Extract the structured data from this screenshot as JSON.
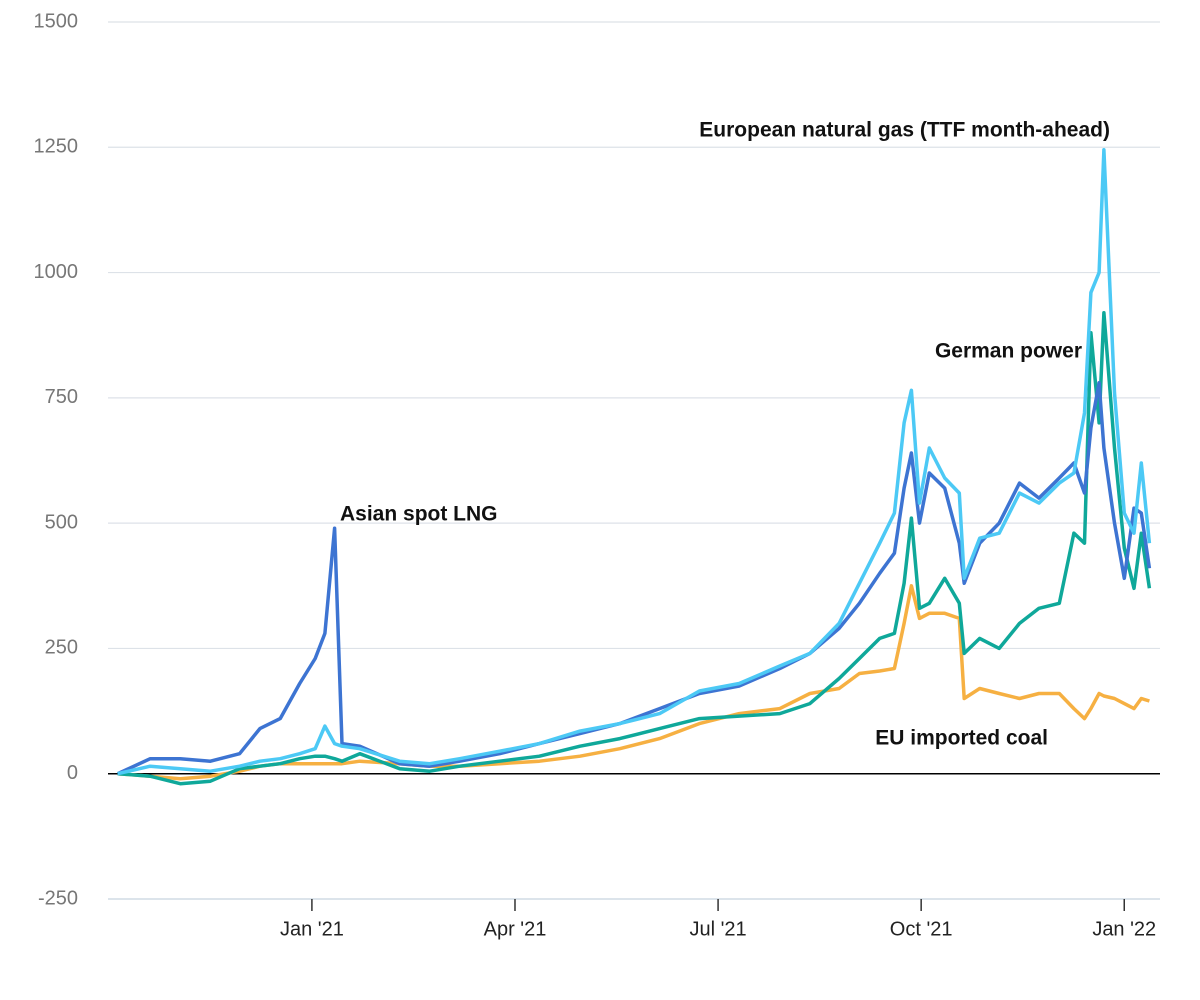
{
  "chart_data": {
    "type": "line",
    "annotations": [
      "Asian spot LNG",
      "European natural gas (TTF month-ahead)",
      "German power",
      "EU imported coal"
    ],
    "x": [
      2020.761,
      2020.801,
      2020.838,
      2020.875,
      2020.911,
      2020.936,
      2020.961,
      2020.985,
      2021.004,
      2021.016,
      2021.028,
      2021.037,
      2021.059,
      2021.108,
      2021.145,
      2021.182,
      2021.231,
      2021.28,
      2021.33,
      2021.379,
      2021.428,
      2021.477,
      2021.526,
      2021.576,
      2021.613,
      2021.649,
      2021.674,
      2021.699,
      2021.717,
      2021.729,
      2021.738,
      2021.748,
      2021.76,
      2021.779,
      2021.797,
      2021.803,
      2021.822,
      2021.846,
      2021.871,
      2021.895,
      2021.92,
      2021.938,
      2021.951,
      2021.959,
      2021.969,
      2021.975,
      2021.988,
      2022.0,
      2022.012,
      2022.021,
      2022.031
    ],
    "series": [
      {
        "name": "EU imported coal",
        "color": "#f6b042",
        "values": [
          0,
          -5,
          -10,
          -5,
          5,
          15,
          20,
          20,
          20,
          20,
          20,
          20,
          25,
          20,
          15,
          15,
          20,
          25,
          35,
          50,
          70,
          100,
          120,
          130,
          160,
          170,
          200,
          205,
          210,
          300,
          375,
          310,
          320,
          320,
          310,
          150,
          170,
          160,
          150,
          160,
          160,
          130,
          110,
          130,
          160,
          155,
          150,
          140,
          130,
          150,
          145
        ]
      },
      {
        "name": "German power",
        "color": "#0fa89a",
        "values": [
          0,
          -5,
          -20,
          -15,
          10,
          15,
          20,
          30,
          35,
          35,
          30,
          25,
          40,
          10,
          5,
          15,
          25,
          35,
          55,
          70,
          90,
          110,
          115,
          120,
          140,
          190,
          230,
          270,
          280,
          380,
          510,
          330,
          340,
          390,
          340,
          240,
          270,
          250,
          300,
          330,
          340,
          480,
          460,
          880,
          700,
          920,
          650,
          450,
          370,
          480,
          370
        ]
      },
      {
        "name": "Asian spot LNG",
        "color": "#3d74d2",
        "values": [
          0,
          30,
          30,
          25,
          40,
          90,
          110,
          180,
          230,
          280,
          490,
          60,
          55,
          20,
          15,
          25,
          40,
          60,
          80,
          100,
          130,
          160,
          175,
          210,
          240,
          290,
          340,
          400,
          440,
          570,
          640,
          500,
          600,
          570,
          460,
          380,
          460,
          500,
          580,
          550,
          590,
          620,
          560,
          690,
          780,
          650,
          500,
          390,
          530,
          520,
          410
        ]
      },
      {
        "name": "European natural gas (TTF month-ahead)",
        "color": "#4cc9f5",
        "values": [
          0,
          15,
          10,
          5,
          15,
          25,
          30,
          40,
          50,
          95,
          60,
          55,
          50,
          25,
          20,
          30,
          45,
          60,
          85,
          100,
          120,
          165,
          180,
          215,
          240,
          300,
          380,
          460,
          520,
          700,
          765,
          540,
          650,
          590,
          560,
          390,
          470,
          480,
          560,
          540,
          580,
          600,
          720,
          960,
          1000,
          1245,
          760,
          520,
          480,
          620,
          460
        ]
      }
    ],
    "xlim": [
      2020.749,
      2022.044
    ],
    "xticks": [
      {
        "value": 2021,
        "label": "Jan '21"
      },
      {
        "value": 2021.25,
        "label": "Apr '21"
      },
      {
        "value": 2021.5,
        "label": "Jul '21"
      },
      {
        "value": 2021.75,
        "label": "Oct '21"
      },
      {
        "value": 2022,
        "label": "Jan '22"
      }
    ],
    "ylim": [
      -250,
      1500
    ],
    "yticks": [
      -250,
      0,
      250,
      500,
      750,
      1000,
      1250,
      1500
    ],
    "grid": true
  }
}
